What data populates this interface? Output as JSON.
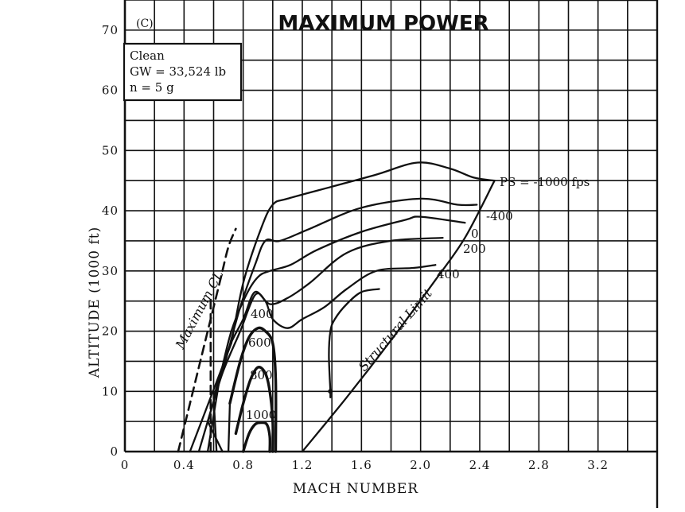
{
  "chart_data": {
    "type": "line",
    "title": "MAXIMUM POWER",
    "panel_label": "(C)",
    "xlabel": "MACH NUMBER",
    "ylabel": "ALTITUDE (1000 ft)",
    "xlim": [
      0,
      3.6
    ],
    "ylim": [
      0,
      75
    ],
    "x_ticks": [
      0,
      0.4,
      0.8,
      1.2,
      1.6,
      2.0,
      2.4,
      2.8,
      3.2
    ],
    "x_tick_labels": [
      "0",
      "0.4",
      "0.8",
      "1.2",
      "1.6",
      "2.0",
      "2.4",
      "2.8",
      "3.2"
    ],
    "y_ticks": [
      0,
      10,
      20,
      30,
      40,
      50,
      60,
      70
    ],
    "y_tick_labels": [
      "0",
      "10",
      "20",
      "30",
      "40",
      "50",
      "60",
      "70"
    ],
    "grid": true,
    "conditions": [
      "Clean",
      "GW = 33,524 lb",
      "n = 5 g"
    ],
    "ps_label": "PS = -1000 fps",
    "contour_labels": [
      "-400",
      "0",
      "200",
      "400",
      "400",
      "600",
      "800",
      "1000"
    ],
    "boundary_labels": {
      "max_cl": "Maximum CL",
      "structural": "Structural Limit"
    },
    "series": [
      {
        "name": "-1000",
        "x": [
          0.72,
          0.8,
          0.92,
          1.0,
          1.1,
          1.4,
          1.7,
          1.98,
          2.2,
          2.36,
          2.5
        ],
        "y": [
          18,
          28,
          37,
          41,
          42,
          44,
          46,
          48,
          47,
          45.5,
          45
        ]
      },
      {
        "name": "-400",
        "x": [
          0.68,
          0.78,
          0.88,
          0.95,
          1.05,
          1.25,
          1.6,
          2.0,
          2.25,
          2.38
        ],
        "y": [
          15,
          24,
          31,
          35,
          35,
          37,
          40.5,
          42,
          41,
          41
        ]
      },
      {
        "name": "0",
        "x": [
          0.64,
          0.72,
          0.82,
          0.9,
          0.98,
          1.12,
          1.3,
          1.6,
          1.9,
          2.0,
          2.3
        ],
        "y": [
          12,
          20,
          26,
          29,
          30,
          31,
          33.5,
          36.5,
          38.5,
          39,
          38
        ]
      },
      {
        "name": "200",
        "x": [
          0.6,
          0.7,
          0.8,
          0.88,
          0.98,
          1.1,
          1.25,
          1.5,
          1.8,
          2.15
        ],
        "y": [
          9,
          17,
          22,
          26.5,
          24.5,
          25.5,
          28,
          33,
          35,
          35.5
        ]
      },
      {
        "name": "400",
        "x": [
          0.56,
          0.66,
          0.78,
          0.88,
          0.95,
          1.0,
          1.1,
          1.2,
          1.35,
          1.5,
          1.7,
          1.95,
          2.1
        ],
        "y": [
          5,
          13,
          20,
          26,
          25,
          22,
          20.5,
          22,
          24,
          27,
          30,
          30.5,
          31
        ]
      },
      {
        "name": "400-inner",
        "x": [
          1.39,
          1.38,
          1.39,
          1.42,
          1.5,
          1.6,
          1.72
        ],
        "y": [
          10,
          16,
          20,
          22,
          24.5,
          26.5,
          27
        ]
      },
      {
        "name": "600",
        "x": [
          0.71,
          0.78,
          0.84,
          0.9,
          0.95,
          1.0,
          1.02,
          1.02
        ],
        "y": [
          8,
          15,
          19,
          20.5,
          20,
          18,
          12,
          0
        ]
      },
      {
        "name": "800",
        "x": [
          0.75,
          0.8,
          0.85,
          0.9,
          0.95,
          0.98,
          1.0,
          1.0
        ],
        "y": [
          3,
          8,
          12,
          14,
          13,
          10,
          5,
          0
        ]
      },
      {
        "name": "1000",
        "x": [
          0.8,
          0.84,
          0.88,
          0.92,
          0.96,
          0.98,
          0.98
        ],
        "y": [
          0,
          3,
          4.5,
          4.8,
          4.5,
          2.5,
          0
        ]
      },
      {
        "name": "Maximum CL",
        "x": [
          0.36,
          0.42,
          0.5,
          0.58,
          0.65,
          0.7,
          0.75
        ],
        "y": [
          0,
          6,
          14,
          22,
          29,
          34,
          37
        ]
      },
      {
        "name": "Structural Limit",
        "x": [
          1.2,
          1.5,
          1.8,
          2.1,
          2.3,
          2.5
        ],
        "y": [
          0,
          9,
          18.5,
          28.5,
          35.5,
          45
        ]
      }
    ]
  }
}
